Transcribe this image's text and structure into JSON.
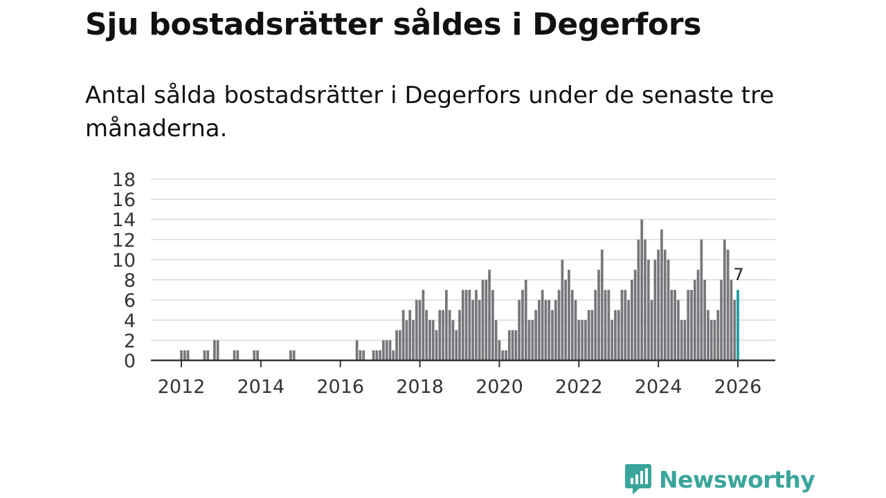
{
  "header": {
    "title": "Sju bostadsrätter såldes i Degerfors",
    "subtitle": "Antal sålda bostadsrätter i Degerfors under de senaste tre månaderna."
  },
  "brand": {
    "name": "Newsworthy",
    "icon": "newsworthy-logo-icon",
    "color": "#3aa59b"
  },
  "colors": {
    "bar": "#77767b",
    "highlight": "#1a9e9e",
    "grid": "#d9d9d9",
    "axis": "#333333"
  },
  "chart_data": {
    "type": "bar",
    "x_start": 2012.0,
    "x_step_years": 0.0833333,
    "x_ticks": [
      "2012",
      "2014",
      "2016",
      "2018",
      "2020",
      "2022",
      "2024",
      "2026"
    ],
    "y_ticks": [
      0,
      2,
      4,
      6,
      8,
      10,
      12,
      14,
      16,
      18
    ],
    "ylim": [
      0,
      18
    ],
    "xlim": [
      2011.25,
      2026.85
    ],
    "grid": true,
    "title": "Sju bostadsrätter såldes i Degerfors",
    "highlight_label": "7",
    "series": [
      {
        "name": "Antal sålda bostadsrätter",
        "values": [
          1,
          1,
          1,
          0,
          0,
          0,
          0,
          1,
          1,
          0,
          2,
          2,
          0,
          0,
          0,
          0,
          1,
          1,
          0,
          0,
          0,
          0,
          1,
          1,
          0,
          0,
          0,
          0,
          0,
          0,
          0,
          0,
          0,
          1,
          1,
          0,
          0,
          0,
          0,
          0,
          0,
          0,
          0,
          0,
          0,
          0,
          0,
          0,
          0,
          0,
          0,
          0,
          0,
          2,
          1,
          1,
          0,
          0,
          1,
          1,
          1,
          2,
          2,
          2,
          1,
          3,
          3,
          5,
          4,
          5,
          4,
          6,
          6,
          7,
          5,
          4,
          4,
          3,
          5,
          5,
          7,
          5,
          4,
          3,
          5,
          7,
          7,
          7,
          6,
          7,
          6,
          8,
          8,
          9,
          7,
          4,
          2,
          1,
          1,
          3,
          3,
          3,
          6,
          7,
          8,
          4,
          4,
          5,
          6,
          7,
          6,
          6,
          5,
          6,
          7,
          10,
          8,
          9,
          7,
          6,
          4,
          4,
          4,
          5,
          5,
          7,
          9,
          11,
          7,
          7,
          4,
          5,
          5,
          7,
          7,
          6,
          8,
          9,
          12,
          14,
          12,
          10,
          6,
          10,
          11,
          13,
          11,
          10,
          7,
          7,
          6,
          4,
          4,
          7,
          7,
          8,
          9,
          12,
          8,
          5,
          4,
          4,
          5,
          8,
          12,
          11,
          8,
          6,
          7
        ]
      }
    ]
  }
}
